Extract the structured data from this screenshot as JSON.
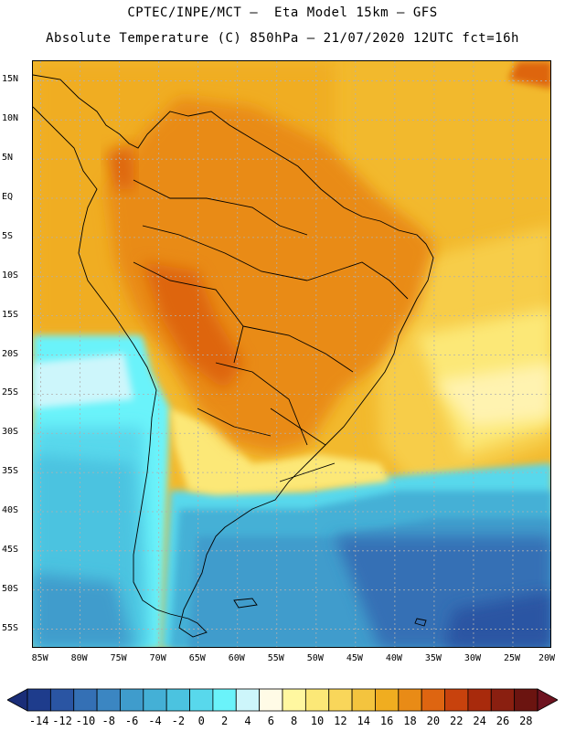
{
  "header": {
    "title_line1": "CPTEC/INPE/MCT –  Eta Model 15km – GFS",
    "title_line2": "Absolute Temperature (C) 850hPa – 21/07/2020 12UTC fct=16h"
  },
  "map": {
    "lat_labels": [
      "15N",
      "10N",
      "5N",
      "EQ",
      "5S",
      "10S",
      "15S",
      "20S",
      "25S",
      "30S",
      "35S",
      "40S",
      "45S",
      "50S",
      "55S"
    ],
    "lat_values": [
      15,
      10,
      5,
      0,
      -5,
      -10,
      -15,
      -20,
      -25,
      -30,
      -35,
      -40,
      -45,
      -50,
      -55
    ],
    "lon_labels": [
      "85W",
      "80W",
      "75W",
      "70W",
      "65W",
      "60W",
      "55W",
      "50W",
      "45W",
      "40W",
      "35W",
      "30W",
      "25W",
      "20W"
    ],
    "lon_values": [
      -85,
      -80,
      -75,
      -70,
      -65,
      -60,
      -55,
      -50,
      -45,
      -40,
      -35,
      -30,
      -25,
      -20
    ],
    "lat_range": [
      -57.5,
      17.5
    ],
    "lon_range": [
      -86,
      -20
    ]
  },
  "colorbar": {
    "labels": [
      "-14",
      "-12",
      "-10",
      "-8",
      "-6",
      "-4",
      "-2",
      "0",
      "2",
      "4",
      "6",
      "8",
      "10",
      "12",
      "14",
      "16",
      "18",
      "20",
      "22",
      "24",
      "26",
      "28"
    ],
    "colors": [
      "#1e3c8c",
      "#2a55a3",
      "#3470b5",
      "#3b86c2",
      "#3f9ccc",
      "#44b0d6",
      "#4bc3e0",
      "#58d8ec",
      "#6af3fa",
      "#cdf6fb",
      "#fffbe6",
      "#fff7a0",
      "#fce877",
      "#f9d65a",
      "#f4c43e",
      "#f0ad20",
      "#e98b16",
      "#de6511",
      "#c8420d",
      "#a82a0c",
      "#8a1f10",
      "#6b1410"
    ],
    "under_color": "#1a2d78",
    "over_color": "#6e1320"
  }
}
